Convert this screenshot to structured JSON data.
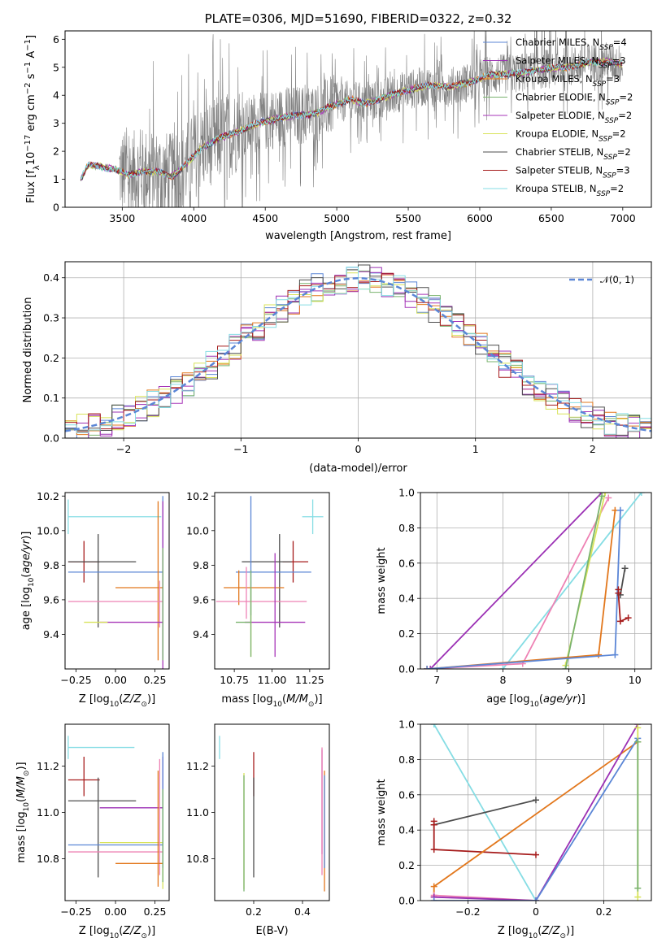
{
  "page_title": "PLATE=0306, MJD=51690, FIBERID=0322, z=0.32",
  "colors": {
    "chabrier_miles": "#5b86d6",
    "salpeter_miles": "#9b30b4",
    "kroupa_miles": "#e2771c",
    "chabrier_elodie": "#7ab36e",
    "salpeter_elodie": "#a736b8",
    "kroupa_elodie": "#d8e35a",
    "chabrier_stelib": "#4d4d4d",
    "salpeter_stelib": "#a61c1c",
    "kroupa_stelib": "#86dde4",
    "data": "#808080",
    "pink": "#ee82b4",
    "gaussian": "#5b86d6"
  },
  "chart_data": [
    {
      "type": "line",
      "title": "PLATE=0306, MJD=51690, FIBERID=0322, z=0.32",
      "xlabel": "wavelength [Angstrom, rest frame]",
      "ylabel": "Flux [f_λ 10^-17 erg cm^-2 s^-1 A^-1]",
      "xlim": [
        3100,
        7200
      ],
      "ylim": [
        0,
        6.3
      ],
      "xticks": [
        3500,
        4000,
        4500,
        5000,
        5500,
        6000,
        6500,
        7000
      ],
      "yticks": [
        0,
        1,
        2,
        3,
        4,
        5,
        6
      ],
      "legend_position": "right",
      "legend": [
        {
          "label": "Chabrier MILES, N_SSP=4",
          "color_key": "chabrier_miles"
        },
        {
          "label": "Salpeter MILES, N_SSP=3",
          "color_key": "salpeter_miles"
        },
        {
          "label": "Kroupa MILES, N_SSP=3",
          "color_key": "kroupa_miles"
        },
        {
          "label": "Chabrier ELODIE, N_SSP=2",
          "color_key": "chabrier_elodie"
        },
        {
          "label": "Salpeter ELODIE, N_SSP=2",
          "color_key": "salpeter_elodie"
        },
        {
          "label": "Kroupa ELODIE, N_SSP=2",
          "color_key": "kroupa_elodie"
        },
        {
          "label": "Chabrier STELIB, N_SSP=2",
          "color_key": "chabrier_stelib"
        },
        {
          "label": "Salpeter STELIB, N_SSP=3",
          "color_key": "salpeter_stelib"
        },
        {
          "label": "Kroupa STELIB, N_SSP=2",
          "color_key": "kroupa_stelib"
        }
      ],
      "model_continuum": {
        "x": [
          3210,
          3260,
          3350,
          3450,
          3550,
          3650,
          3750,
          3850,
          3950,
          4050,
          4150,
          4300,
          4450,
          4600,
          4750,
          4850,
          4950,
          5100,
          5200,
          5350,
          5500,
          5650,
          5800,
          5950,
          6050,
          6150,
          6300,
          6450,
          6600,
          6750,
          6900,
          7000
        ],
        "y": [
          1.0,
          1.5,
          1.45,
          1.35,
          1.15,
          1.3,
          1.25,
          1.1,
          1.55,
          2.1,
          2.4,
          2.7,
          3.0,
          3.2,
          3.3,
          3.35,
          3.6,
          3.85,
          3.7,
          3.95,
          4.2,
          4.35,
          4.3,
          4.5,
          4.7,
          4.75,
          4.8,
          4.95,
          5.0,
          5.15,
          5.2,
          5.1
        ]
      },
      "observed_range": [
        3480,
        7000
      ]
    },
    {
      "type": "line",
      "xlabel": "(data-model)/error",
      "ylabel": "Normed distribution",
      "xlim": [
        -2.5,
        2.5
      ],
      "ylim": [
        0,
        0.44
      ],
      "xticks": [
        -2,
        -1,
        0,
        1,
        2
      ],
      "yticks": [
        0.0,
        0.1,
        0.2,
        0.3,
        0.4
      ],
      "grid": true,
      "legend_position": "top-right",
      "gaussian_label": "𝒩(0, 1)",
      "bin_width": 0.1
    },
    {
      "type": "scatter",
      "xlabel": "Z [log10(Z/Z⊙)]",
      "ylabel": "age  [log10(age/yr)]",
      "xlim": [
        -0.32,
        0.34
      ],
      "ylim": [
        9.2,
        10.22
      ],
      "xticks": [
        -0.25,
        0.0,
        0.25
      ],
      "yticks": [
        9.4,
        9.6,
        9.8,
        10.0,
        10.2
      ],
      "points": [
        {
          "color_key": "kroupa_stelib",
          "x": -0.3,
          "xerr": [
            0.0,
            0.59
          ],
          "y": 10.08,
          "yerr": [
            0.1,
            0.1
          ]
        },
        {
          "color_key": "salpeter_stelib",
          "x": -0.2,
          "xerr": [
            0.1,
            0.1
          ],
          "y": 9.82,
          "yerr": [
            0.12,
            0.12
          ]
        },
        {
          "color_key": "chabrier_stelib",
          "x": -0.11,
          "xerr": [
            0.19,
            0.24
          ],
          "y": 9.82,
          "yerr": [
            0.38,
            0.16
          ]
        },
        {
          "color_key": "chabrier_miles",
          "x": 0.3,
          "xerr": [
            0.6,
            0.0
          ],
          "y": 9.76,
          "yerr": [
            0.5,
            0.44
          ]
        },
        {
          "color_key": "kroupa_miles",
          "x": 0.27,
          "xerr": [
            0.27,
            0.03
          ],
          "y": 9.67,
          "yerr": [
            0.42,
            0.5
          ]
        },
        {
          "color_key": "pink",
          "x": 0.28,
          "xerr": [
            0.58,
            0.02
          ],
          "y": 9.59,
          "yerr": [
            0.15,
            0.12
          ]
        },
        {
          "color_key": "salpeter_elodie",
          "x": 0.3,
          "xerr": [
            0.4,
            0.0
          ],
          "y": 9.47,
          "yerr": [
            0.3,
            0.7
          ]
        },
        {
          "color_key": "kroupa_elodie",
          "x": -0.1,
          "xerr": [
            0.1,
            0.05
          ],
          "y": 9.47,
          "yerr": [
            0.0,
            0.0
          ]
        },
        {
          "color_key": "chabrier_elodie",
          "x": 0.3,
          "xerr": [
            0.0,
            0.0
          ],
          "y": 9.4,
          "yerr": [
            0.15,
            0.5
          ]
        }
      ]
    },
    {
      "type": "scatter",
      "xlabel": "mass [log10(M/M⊙)]",
      "xlim": [
        10.62,
        11.38
      ],
      "ylim": [
        9.2,
        10.22
      ],
      "xticks": [
        10.75,
        11.0,
        11.25
      ],
      "yticks": [
        9.4,
        9.6,
        9.8,
        10.0,
        10.2
      ],
      "points": [
        {
          "color_key": "kroupa_stelib",
          "x": 11.27,
          "xerr": [
            0.07,
            0.07
          ],
          "y": 10.08,
          "yerr": [
            0.1,
            0.1
          ]
        },
        {
          "color_key": "salpeter_stelib",
          "x": 11.14,
          "xerr": [
            0.07,
            0.1
          ],
          "y": 9.82,
          "yerr": [
            0.12,
            0.12
          ]
        },
        {
          "color_key": "chabrier_stelib",
          "x": 11.05,
          "xerr": [
            0.25,
            0.08
          ],
          "y": 9.82,
          "yerr": [
            0.38,
            0.16
          ]
        },
        {
          "color_key": "chabrier_miles",
          "x": 10.86,
          "xerr": [
            0.1,
            0.4
          ],
          "y": 9.76,
          "yerr": [
            0.25,
            0.44
          ]
        },
        {
          "color_key": "kroupa_miles",
          "x": 10.78,
          "xerr": [
            0.1,
            0.3
          ],
          "y": 9.67,
          "yerr": [
            0.1,
            0.1
          ]
        },
        {
          "color_key": "pink",
          "x": 10.83,
          "xerr": [
            0.2,
            0.4
          ],
          "y": 9.59,
          "yerr": [
            0.1,
            0.2
          ]
        },
        {
          "color_key": "salpeter_elodie",
          "x": 11.02,
          "xerr": [
            0.2,
            0.2
          ],
          "y": 9.47,
          "yerr": [
            0.2,
            0.4
          ]
        },
        {
          "color_key": "kroupa_elodie",
          "x": 10.86,
          "xerr": [
            0.0,
            0.0
          ],
          "y": 9.47,
          "yerr": [
            0.2,
            0.2
          ]
        },
        {
          "color_key": "chabrier_elodie",
          "x": 10.86,
          "xerr": [
            0.1,
            0.0
          ],
          "y": 9.47,
          "yerr": [
            0.2,
            0.3
          ]
        }
      ]
    },
    {
      "type": "line",
      "xlabel": "age  [log10(age/yr)]",
      "ylabel": "mass weight",
      "xlim": [
        6.75,
        10.25
      ],
      "ylim": [
        0,
        1
      ],
      "xticks": [
        7,
        8,
        9,
        10
      ],
      "yticks": [
        0.0,
        0.2,
        0.4,
        0.6,
        0.8,
        1.0
      ],
      "grid": true,
      "series": [
        {
          "color_key": "salpeter_miles",
          "x": [
            6.9,
            9.5
          ],
          "y": [
            0.0,
            1.0
          ]
        },
        {
          "color_key": "kroupa_stelib",
          "x": [
            8.0,
            10.1
          ],
          "y": [
            0.0,
            1.0
          ]
        },
        {
          "color_key": "pink",
          "x": [
            6.85,
            8.3,
            9.6
          ],
          "y": [
            0.0,
            0.03,
            0.97
          ]
        },
        {
          "color_key": "kroupa_elodie",
          "x": [
            8.95,
            9.55
          ],
          "y": [
            0.02,
            1.0
          ]
        },
        {
          "color_key": "chabrier_elodie",
          "x": [
            8.95,
            9.5
          ],
          "y": [
            0.0,
            0.98
          ]
        },
        {
          "color_key": "kroupa_miles",
          "x": [
            6.85,
            9.45,
            9.7
          ],
          "y": [
            0.0,
            0.08,
            0.9
          ]
        },
        {
          "color_key": "chabrier_miles",
          "x": [
            6.85,
            9.7,
            9.78
          ],
          "y": [
            0.0,
            0.08,
            0.9
          ]
        },
        {
          "color_key": "chabrier_stelib",
          "x": [
            9.78,
            9.85
          ],
          "y": [
            0.42,
            0.57
          ]
        },
        {
          "color_key": "salpeter_stelib",
          "x": [
            9.75,
            9.75,
            9.78,
            9.9
          ],
          "y": [
            0.45,
            0.43,
            0.27,
            0.29
          ]
        }
      ]
    },
    {
      "type": "scatter",
      "xlabel": "Z [log10(Z/Z⊙)]",
      "ylabel": "mass [log10(M/M⊙)]",
      "xlim": [
        -0.32,
        0.34
      ],
      "ylim": [
        10.62,
        11.38
      ],
      "xticks": [
        -0.25,
        0.0,
        0.25
      ],
      "yticks": [
        10.8,
        11.0,
        11.2
      ],
      "points": [
        {
          "color_key": "kroupa_stelib",
          "x": -0.3,
          "xerr": [
            0.0,
            0.42
          ],
          "y": 11.28,
          "yerr": [
            0.05,
            0.05
          ]
        },
        {
          "color_key": "salpeter_stelib",
          "x": -0.2,
          "xerr": [
            0.1,
            0.1
          ],
          "y": 11.14,
          "yerr": [
            0.07,
            0.1
          ]
        },
        {
          "color_key": "chabrier_stelib",
          "x": -0.11,
          "xerr": [
            0.19,
            0.24
          ],
          "y": 11.05,
          "yerr": [
            0.33,
            0.1
          ]
        },
        {
          "color_key": "salpeter_miles",
          "x": 0.3,
          "xerr": [
            0.4,
            0.0
          ],
          "y": 11.02,
          "yerr": [
            0.2,
            0.22
          ]
        },
        {
          "color_key": "kroupa_elodie",
          "x": 0.3,
          "xerr": [
            0.4,
            0.0
          ],
          "y": 10.87,
          "yerr": [
            0.2,
            0.2
          ]
        },
        {
          "color_key": "chabrier_miles",
          "x": 0.3,
          "xerr": [
            0.6,
            0.0
          ],
          "y": 10.86,
          "yerr": [
            0.1,
            0.4
          ]
        },
        {
          "color_key": "pink",
          "x": 0.28,
          "xerr": [
            0.58,
            0.02
          ],
          "y": 10.83,
          "yerr": [
            0.1,
            0.4
          ]
        },
        {
          "color_key": "kroupa_miles",
          "x": 0.27,
          "xerr": [
            0.27,
            0.03
          ],
          "y": 10.78,
          "yerr": [
            0.1,
            0.4
          ]
        },
        {
          "color_key": "chabrier_elodie",
          "x": 0.3,
          "xerr": [
            0.0,
            0.0
          ],
          "y": 10.8,
          "yerr": [
            0.1,
            0.3
          ]
        }
      ]
    },
    {
      "type": "scatter",
      "xlabel": "E(B-V)",
      "xlim": [
        0.04,
        0.51
      ],
      "ylim": [
        10.62,
        11.38
      ],
      "xticks": [
        0.2,
        0.4
      ],
      "yticks": [
        10.8,
        11.0,
        11.2
      ],
      "points": [
        {
          "color_key": "kroupa_stelib",
          "x": 0.06,
          "y": 11.28,
          "yerr": [
            0.05,
            0.05
          ]
        },
        {
          "color_key": "salpeter_stelib",
          "x": 0.2,
          "y": 11.14,
          "yerr": [
            0.07,
            0.12
          ]
        },
        {
          "color_key": "chabrier_stelib",
          "x": 0.2,
          "y": 11.05,
          "yerr": [
            0.33,
            0.1
          ]
        },
        {
          "color_key": "kroupa_elodie",
          "x": 0.16,
          "y": 10.87,
          "yerr": [
            0.2,
            0.3
          ]
        },
        {
          "color_key": "chabrier_elodie",
          "x": 0.16,
          "y": 10.86,
          "yerr": [
            0.2,
            0.3
          ]
        },
        {
          "color_key": "salpeter_miles",
          "x": 0.48,
          "y": 11.02,
          "yerr": [
            0.2,
            0.25
          ]
        },
        {
          "color_key": "pink",
          "x": 0.48,
          "y": 10.83,
          "yerr": [
            0.1,
            0.45
          ]
        },
        {
          "color_key": "kroupa_miles",
          "x": 0.49,
          "y": 10.78,
          "yerr": [
            0.12,
            0.4
          ]
        },
        {
          "color_key": "chabrier_miles",
          "x": 0.49,
          "y": 10.86,
          "yerr": [
            0.1,
            0.3
          ]
        }
      ]
    },
    {
      "type": "line",
      "xlabel": "Z [log10(Z/Z⊙)]",
      "ylabel": "mass weight",
      "xlim": [
        -0.34,
        0.34
      ],
      "ylim": [
        0,
        1
      ],
      "xticks": [
        -0.2,
        0.0,
        0.2
      ],
      "yticks": [
        0.0,
        0.2,
        0.4,
        0.6,
        0.8,
        1.0
      ],
      "grid": true,
      "series": [
        {
          "color_key": "kroupa_stelib",
          "x": [
            -0.3,
            0.0
          ],
          "y": [
            1.0,
            0.0
          ]
        },
        {
          "color_key": "chabrier_stelib",
          "x": [
            -0.3,
            0.0
          ],
          "y": [
            0.43,
            0.57
          ]
        },
        {
          "color_key": "salpeter_stelib",
          "x": [
            -0.3,
            -0.3,
            -0.3,
            0.0
          ],
          "y": [
            0.45,
            0.43,
            0.29,
            0.26
          ]
        },
        {
          "color_key": "kroupa_miles",
          "x": [
            -0.3,
            -0.3,
            0.3
          ],
          "y": [
            0.02,
            0.08,
            0.9
          ]
        },
        {
          "color_key": "pink",
          "x": [
            -0.3,
            0.0
          ],
          "y": [
            0.03,
            0.0
          ]
        },
        {
          "color_key": "salpeter_miles",
          "x": [
            -0.3,
            0.0,
            0.3
          ],
          "y": [
            0.02,
            0.0,
            1.0
          ]
        },
        {
          "color_key": "chabrier_miles",
          "x": [
            -0.3,
            0.0,
            0.3
          ],
          "y": [
            0.0,
            0.0,
            0.92
          ]
        },
        {
          "color_key": "kroupa_elodie",
          "x": [
            0.3,
            0.3
          ],
          "y": [
            0.02,
            0.98
          ]
        },
        {
          "color_key": "chabrier_elodie",
          "x": [
            0.3,
            0.3
          ],
          "y": [
            0.07,
            0.9
          ]
        }
      ]
    }
  ]
}
